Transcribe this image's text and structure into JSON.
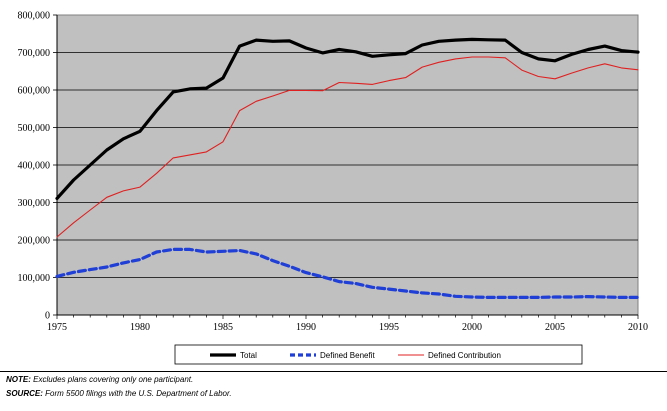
{
  "chart_data": {
    "type": "line",
    "title": "",
    "xlabel": "",
    "ylabel": "",
    "xlim": [
      1975,
      2010
    ],
    "ylim": [
      0,
      800000
    ],
    "x_ticks": [
      1975,
      1980,
      1985,
      1990,
      1995,
      2000,
      2005,
      2010
    ],
    "y_ticks": [
      0,
      100000,
      200000,
      300000,
      400000,
      500000,
      600000,
      700000,
      800000
    ],
    "y_tick_labels": [
      "0",
      "100,000",
      "200,000",
      "300,000",
      "400,000",
      "500,000",
      "600,000",
      "700,000",
      "800,000"
    ],
    "grid": "horizontal",
    "plot_background": "#c0c0c0",
    "legend_position": "bottom",
    "x": [
      1975,
      1976,
      1977,
      1978,
      1979,
      1980,
      1981,
      1982,
      1983,
      1984,
      1985,
      1986,
      1987,
      1988,
      1989,
      1990,
      1991,
      1992,
      1993,
      1994,
      1995,
      1996,
      1997,
      1998,
      1999,
      2000,
      2001,
      2002,
      2003,
      2004,
      2005,
      2006,
      2007,
      2008,
      2009,
      2010
    ],
    "series": [
      {
        "name": "Total",
        "color": "#000000",
        "style": "solid-thick",
        "values": [
          311000,
          360000,
          400000,
          440000,
          470000,
          490000,
          545000,
          595000,
          603000,
          605000,
          632000,
          717000,
          733000,
          730000,
          731000,
          712000,
          699000,
          708000,
          702000,
          690000,
          694000,
          697000,
          720000,
          730000,
          733000,
          735000,
          734000,
          733000,
          700000,
          683000,
          678000,
          695000,
          708000,
          717000,
          705000,
          701000
        ]
      },
      {
        "name": "Defined Benefit",
        "color": "#1f3fd6",
        "style": "dashed-thick",
        "values": [
          103000,
          114000,
          121000,
          128000,
          139000,
          148000,
          168000,
          175000,
          175000,
          168000,
          170000,
          172000,
          163000,
          145000,
          130000,
          113000,
          102000,
          89000,
          84000,
          74000,
          69000,
          64000,
          59000,
          56000,
          50000,
          48000,
          47000,
          47000,
          47000,
          47000,
          48000,
          48000,
          49000,
          48000,
          47000,
          47000
        ]
      },
      {
        "name": "Defined Contribution",
        "color": "#e02020",
        "style": "solid-thin",
        "values": [
          208000,
          246000,
          280000,
          314000,
          331000,
          341000,
          378000,
          419000,
          427000,
          435000,
          462000,
          545000,
          570000,
          584000,
          599000,
          599000,
          598000,
          620000,
          618000,
          615000,
          625000,
          633000,
          661000,
          674000,
          683000,
          688000,
          688000,
          686000,
          653000,
          636000,
          630000,
          645000,
          659000,
          670000,
          659000,
          654000
        ]
      }
    ]
  },
  "notes": {
    "note_label": "NOTE:",
    "note_text": " Excludes plans covering only one participant.",
    "source_label": "SOURCE:",
    "source_text": " Form 5500 filings with the U.S. Department of Labor."
  }
}
